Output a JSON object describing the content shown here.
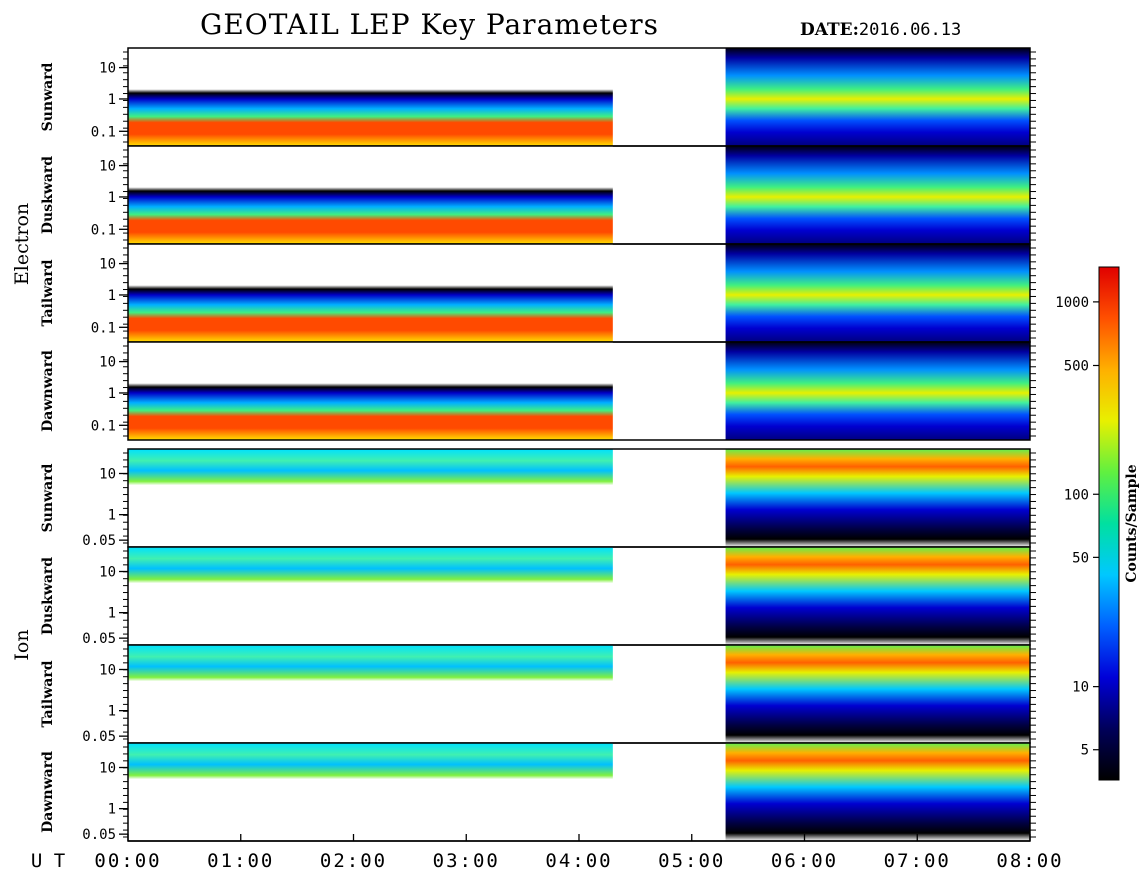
{
  "title": "GEOTAIL LEP Key Parameters",
  "date_label": "DATE:",
  "date_value": "2016.06.13",
  "chart_data": {
    "type": "heatmap",
    "time_axis": {
      "label": "U T",
      "ticks": [
        "00:00",
        "01:00",
        "02:00",
        "03:00",
        "04:00",
        "05:00",
        "06:00",
        "07:00",
        "08:00"
      ],
      "range_hours": [
        0,
        8
      ]
    },
    "data_gaps": [
      [
        4.3,
        5.3
      ]
    ],
    "species": [
      {
        "label": "Electron",
        "yticks": [
          "10",
          "1",
          "0.1"
        ],
        "panels": [
          {
            "label": "Sunward"
          },
          {
            "label": "Duskward"
          },
          {
            "label": "Tailward"
          },
          {
            "label": "Dawnward"
          }
        ]
      },
      {
        "label": "Ion",
        "yticks": [
          "10",
          "1",
          "0.05"
        ],
        "panels": [
          {
            "label": "Sunward"
          },
          {
            "label": "Duskward"
          },
          {
            "label": "Tailward"
          },
          {
            "label": "Dawnward"
          }
        ]
      }
    ],
    "colorbar": {
      "label": "Counts/Sample",
      "scale": "log",
      "ticks": [
        "1000",
        "500",
        "100",
        "50",
        "10",
        "5"
      ],
      "colors": [
        "#000000",
        "#00005a",
        "#0000d8",
        "#0060ff",
        "#00c8ff",
        "#00e0a0",
        "#60f040",
        "#e8f000",
        "#ffb000",
        "#ff5000",
        "#e00000"
      ]
    }
  }
}
